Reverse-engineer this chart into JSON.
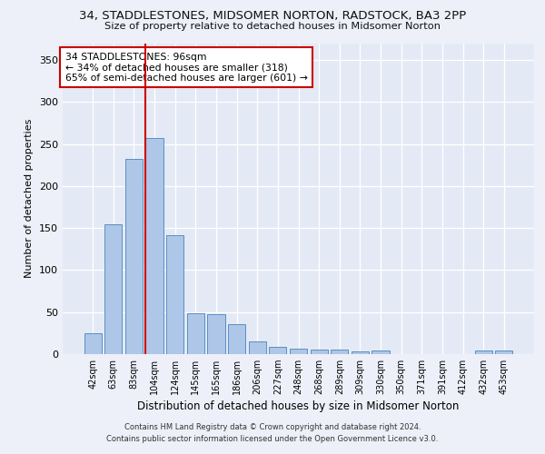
{
  "title_line1": "34, STADDLESTONES, MIDSOMER NORTON, RADSTOCK, BA3 2PP",
  "title_line2": "Size of property relative to detached houses in Midsomer Norton",
  "xlabel": "Distribution of detached houses by size in Midsomer Norton",
  "ylabel": "Number of detached properties",
  "categories": [
    "42sqm",
    "63sqm",
    "83sqm",
    "104sqm",
    "124sqm",
    "145sqm",
    "165sqm",
    "186sqm",
    "206sqm",
    "227sqm",
    "248sqm",
    "268sqm",
    "289sqm",
    "309sqm",
    "330sqm",
    "350sqm",
    "371sqm",
    "391sqm",
    "412sqm",
    "432sqm",
    "453sqm"
  ],
  "values": [
    25,
    155,
    232,
    257,
    142,
    49,
    48,
    36,
    15,
    9,
    6,
    5,
    5,
    3,
    4,
    0,
    0,
    0,
    0,
    4,
    4
  ],
  "bar_color": "#aec6e8",
  "bar_edge_color": "#5a8fc2",
  "vline_x": 2.575,
  "vline_color": "#cc0000",
  "annotation_text": "34 STADDLESTONES: 96sqm\n← 34% of detached houses are smaller (318)\n65% of semi-detached houses are larger (601) →",
  "annotation_box_color": "#ffffff",
  "annotation_box_edge": "#cc0000",
  "ylim": [
    0,
    370
  ],
  "yticks": [
    0,
    50,
    100,
    150,
    200,
    250,
    300,
    350
  ],
  "footer_line1": "Contains HM Land Registry data © Crown copyright and database right 2024.",
  "footer_line2": "Contains public sector information licensed under the Open Government Licence v3.0.",
  "bg_color": "#edf0f8",
  "plot_bg_color": "#e4eaf5"
}
